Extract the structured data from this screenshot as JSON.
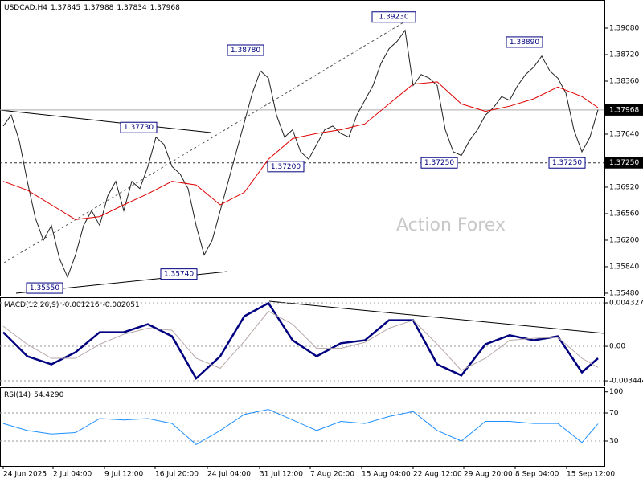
{
  "chart_data": [
    {
      "type": "line",
      "title": "USDCAD,H4",
      "header_values": [
        1.37845,
        1.37988,
        1.37834,
        1.37968
      ],
      "watermark": "Action Forex",
      "xlim": [
        -0.4,
        74.8
      ],
      "ylim": [
        1.35447,
        1.3944
      ],
      "yticks": [
        {
          "value": 1.3908,
          "label": "1.39080"
        },
        {
          "value": 1.3872,
          "label": "1.38720"
        },
        {
          "value": 1.3836,
          "label": "1.38360"
        },
        {
          "value": 1.3764,
          "label": "1.37640"
        },
        {
          "value": 1.3692,
          "label": "1.36920"
        },
        {
          "value": 1.3656,
          "label": "1.36560"
        },
        {
          "value": 1.362,
          "label": "1.36200"
        },
        {
          "value": 1.3584,
          "label": "1.35840"
        },
        {
          "value": 1.3548,
          "label": "1.35480"
        }
      ],
      "price_lines": [
        1.37968,
        {
          "value": 1.3725,
          "label": "1.37250"
        }
      ],
      "annotations": [
        {
          "value": 1.3923,
          "label": "1.39230"
        },
        {
          "value": 1.3878,
          "label": "1.38780"
        },
        {
          "value": 1.3773,
          "label": "1.37730"
        },
        {
          "value": 1.372,
          "label": "1.37200"
        },
        {
          "value": 1.3574,
          "label": "1.35740"
        },
        {
          "value": 1.3555,
          "label": "1.35550"
        },
        {
          "value": 1.3725,
          "label": "1.37250"
        },
        {
          "value": 1.3889,
          "label": "1.38890"
        },
        {
          "value": 1.3725,
          "label": "1.37250"
        }
      ],
      "series": [
        {
          "color": "#222222",
          "x": [
            0,
            1,
            2,
            3,
            4,
            5,
            6,
            7,
            8,
            9,
            10,
            11,
            12,
            13,
            14,
            15,
            16,
            17,
            18,
            19,
            20,
            21,
            22,
            23,
            24,
            25,
            26,
            27,
            28,
            29,
            30,
            31,
            32,
            33,
            34,
            35,
            36,
            37,
            38,
            39,
            40,
            41,
            42,
            43,
            44,
            45,
            46,
            47,
            48,
            49,
            50,
            51,
            52,
            53,
            54,
            55,
            56,
            57,
            58,
            59,
            60,
            61,
            62,
            63,
            64,
            65,
            66,
            67,
            68,
            69,
            70,
            71,
            72,
            73,
            74
          ],
          "values": [
            1.3775,
            1.379,
            1.3755,
            1.37,
            1.365,
            1.362,
            1.364,
            1.3595,
            1.357,
            1.36,
            1.364,
            1.366,
            1.364,
            1.368,
            1.37,
            1.366,
            1.37,
            1.369,
            1.372,
            1.376,
            1.375,
            1.372,
            1.371,
            1.369,
            1.364,
            1.36,
            1.362,
            1.366,
            1.37,
            1.374,
            1.378,
            1.382,
            1.385,
            1.384,
            1.379,
            1.376,
            1.377,
            1.374,
            1.373,
            1.375,
            1.377,
            1.3775,
            1.3765,
            1.376,
            1.379,
            1.381,
            1.383,
            1.386,
            1.388,
            1.389,
            1.3905,
            1.383,
            1.3845,
            1.384,
            1.383,
            1.377,
            1.374,
            1.3735,
            1.3755,
            1.377,
            1.379,
            1.38,
            1.3815,
            1.381,
            1.383,
            1.3845,
            1.3855,
            1.387,
            1.385,
            1.384,
            1.382,
            1.377,
            1.374,
            1.376,
            1.3797
          ]
        },
        {
          "color": "#e00000",
          "x": [
            0,
            3,
            6,
            9,
            12,
            15,
            18,
            21,
            24,
            27,
            30,
            33,
            36,
            39,
            42,
            45,
            48,
            51,
            54,
            57,
            60,
            63,
            66,
            69,
            72,
            74
          ],
          "values": [
            1.37,
            1.3688,
            1.3668,
            1.3648,
            1.3652,
            1.3668,
            1.3683,
            1.37,
            1.3695,
            1.3668,
            1.3685,
            1.373,
            1.3758,
            1.3765,
            1.377,
            1.3778,
            1.3805,
            1.3832,
            1.3835,
            1.3805,
            1.3795,
            1.3802,
            1.3812,
            1.3828,
            1.3815,
            1.38
          ]
        }
      ]
    },
    {
      "type": "line",
      "title": "MACD(12,26,9)",
      "header_values": [
        -0.001216,
        -0.002051
      ],
      "xlim": [
        -0.4,
        74.8
      ],
      "ylim": [
        -0.00392,
        0.00481
      ],
      "yticks": [
        0.004327,
        {
          "value": 0,
          "label": "0.00"
        },
        -0.003444
      ],
      "grid": true,
      "series": [
        {
          "color": "#000080",
          "x": [
            0,
            3,
            6,
            9,
            12,
            15,
            18,
            21,
            24,
            27,
            30,
            33,
            36,
            39,
            42,
            45,
            48,
            51,
            54,
            57,
            60,
            63,
            66,
            69,
            72,
            74
          ],
          "values": [
            0.0014,
            -0.001,
            -0.0018,
            -0.0006,
            0.0014,
            0.0014,
            0.0022,
            0.001,
            -0.0032,
            -0.001,
            0.003,
            0.0043,
            0.0006,
            -0.001,
            0.0003,
            0.0006,
            0.0026,
            0.0026,
            -0.0018,
            -0.0029,
            0.0002,
            0.0011,
            0.0006,
            0.001,
            -0.0026,
            -0.0012
          ]
        },
        {
          "color": "#b8a8a8",
          "x": [
            0,
            3,
            6,
            9,
            12,
            15,
            18,
            21,
            24,
            27,
            30,
            33,
            36,
            39,
            42,
            45,
            48,
            51,
            54,
            57,
            60,
            63,
            66,
            69,
            72,
            74
          ],
          "values": [
            0.002,
            0.0002,
            -0.0012,
            -0.0012,
            0.0002,
            0.0012,
            0.0018,
            0.0016,
            -0.0012,
            -0.0022,
            0.0005,
            0.0035,
            0.0022,
            -0.0002,
            -0.0002,
            0.0004,
            0.0018,
            0.0026,
            0.0002,
            -0.0024,
            -0.0012,
            0.0006,
            0.0008,
            0.0009,
            -0.0012,
            -0.0021
          ]
        }
      ]
    },
    {
      "type": "line",
      "title": "RSI(14)",
      "header_values": [
        {
          "value": 54.429,
          "label": "54.4290"
        }
      ],
      "xlim": [
        -0.4,
        74.8
      ],
      "ylim": [
        -5.4,
        105.4
      ],
      "yticks": [
        100,
        70,
        30
      ],
      "grid": true,
      "xticks": [
        {
          "value": 0,
          "label": "24 Jun 2025"
        },
        {
          "value": 6.2,
          "label": "2 Jul 04:00"
        },
        {
          "value": 12.6,
          "label": "9 Jul 12:00"
        },
        {
          "value": 18.9,
          "label": "16 Jul 20:00"
        },
        {
          "value": 25.4,
          "label": "24 Jul 04:00"
        },
        {
          "value": 31.9,
          "label": "31 Jul 12:00"
        },
        {
          "value": 38.2,
          "label": "7 Aug 20:00"
        },
        {
          "value": 44.6,
          "label": "15 Aug 04:00"
        },
        {
          "value": 51,
          "label": "22 Aug 12:00"
        },
        {
          "value": 57.3,
          "label": "29 Aug 20:00"
        },
        {
          "value": 63.7,
          "label": "8 Sep 04:00"
        },
        {
          "value": 70.1,
          "label": "15 Sep 12:00"
        }
      ],
      "series": [
        {
          "color": "#1e90ff",
          "x": [
            0,
            3,
            6,
            9,
            12,
            15,
            18,
            21,
            24,
            27,
            30,
            33,
            36,
            39,
            42,
            45,
            48,
            51,
            54,
            57,
            60,
            63,
            66,
            69,
            72,
            74
          ],
          "values": [
            55,
            45,
            40,
            42,
            62,
            60,
            62,
            55,
            25,
            45,
            68,
            75,
            60,
            45,
            58,
            55,
            65,
            72,
            45,
            30,
            58,
            58,
            55,
            55,
            28,
            54.4
          ]
        }
      ]
    }
  ]
}
